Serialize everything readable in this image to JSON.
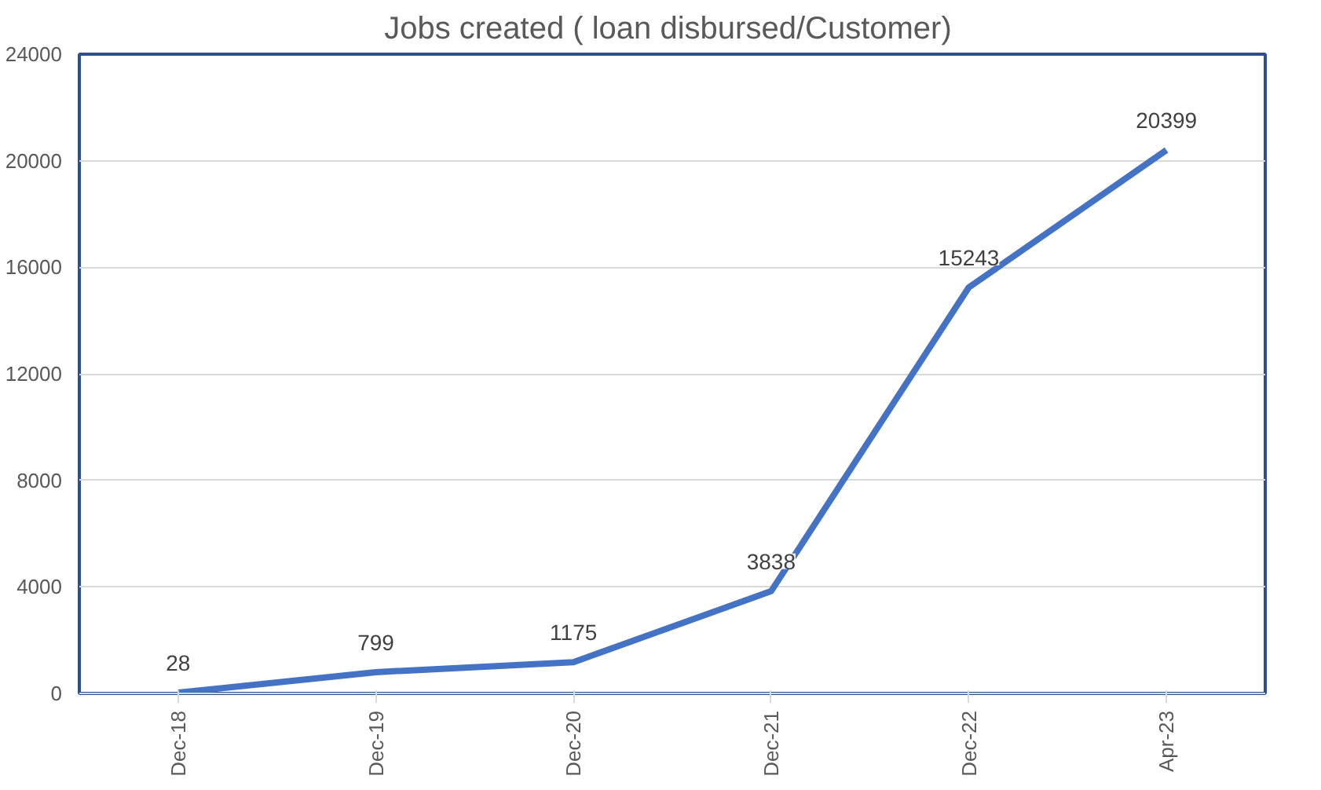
{
  "chart_data": {
    "type": "line",
    "title": "Jobs created (  loan disbursed/Customer)",
    "categories": [
      "Dec-18",
      "Dec-19",
      "Dec-20",
      "Dec-21",
      "Dec-22",
      "Apr-23"
    ],
    "series": [
      {
        "color": "#4472c4",
        "values": [
          28,
          799,
          1175,
          3838,
          15243,
          20399
        ]
      }
    ],
    "ylim": [
      0,
      24000
    ],
    "yticks": [
      0,
      4000,
      8000,
      12000,
      16000,
      20000,
      24000
    ],
    "grid": "y",
    "data_labels": true
  }
}
